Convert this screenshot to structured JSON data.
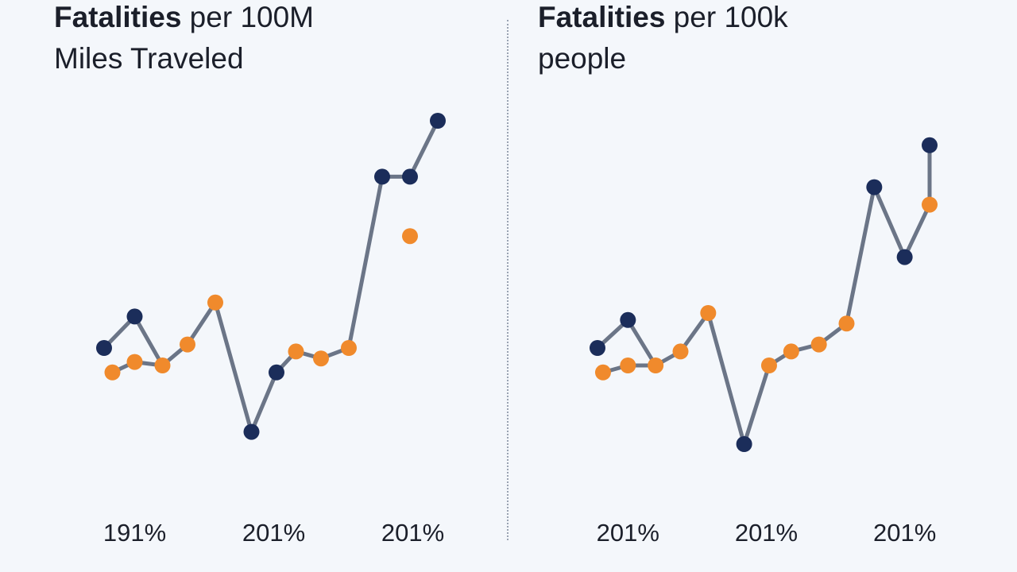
{
  "chart_data": [
    {
      "type": "line",
      "title_bold": "Fatalities",
      "title_rest": " per 100M",
      "title_line2": "Miles Traveled",
      "x_tick_labels": [
        "191%",
        "201%",
        "201%"
      ],
      "x_ticks_at": [
        1.1,
        6.1,
        11.1
      ],
      "xlim": [
        0,
        12
      ],
      "ylim": [
        0,
        100
      ],
      "grid": false,
      "lines": [
        [
          [
            0,
            30
          ],
          [
            1.1,
            39
          ],
          [
            2.1,
            25
          ],
          [
            3,
            31
          ],
          [
            4,
            43
          ],
          [
            5.3,
            6
          ],
          [
            6.2,
            23
          ],
          [
            6.9,
            29
          ],
          [
            7.8,
            27
          ],
          [
            8.8,
            30
          ],
          [
            10,
            79
          ],
          [
            11,
            79
          ],
          [
            12,
            95
          ]
        ],
        [
          [
            0.3,
            23
          ],
          [
            1.1,
            26
          ],
          [
            2.1,
            25
          ]
        ]
      ],
      "markers": {
        "navy": [
          [
            0,
            30
          ],
          [
            1.1,
            39
          ],
          [
            5.3,
            6
          ],
          [
            6.2,
            23
          ],
          [
            10,
            79
          ],
          [
            11,
            79
          ],
          [
            12,
            95
          ]
        ],
        "orange": [
          [
            0.3,
            23
          ],
          [
            1.1,
            26
          ],
          [
            2.1,
            25
          ],
          [
            3,
            31
          ],
          [
            4,
            43
          ],
          [
            6.9,
            29
          ],
          [
            7.8,
            27
          ],
          [
            8.8,
            30
          ],
          [
            11,
            62
          ]
        ]
      }
    },
    {
      "type": "line",
      "title_bold": "Fatalities",
      "title_rest": " per 100k",
      "title_line2": "people",
      "x_tick_labels": [
        "201%",
        "201%",
        "201%"
      ],
      "x_ticks_at": [
        1.1,
        6.1,
        11.1
      ],
      "xlim": [
        0,
        12
      ],
      "ylim": [
        0,
        100
      ],
      "grid": false,
      "lines": [
        [
          [
            0,
            30
          ],
          [
            1.1,
            38
          ],
          [
            2.1,
            25
          ],
          [
            3,
            29
          ],
          [
            4,
            40
          ],
          [
            5.3,
            2.5
          ],
          [
            6.2,
            25
          ],
          [
            7,
            29
          ],
          [
            8,
            31
          ],
          [
            9,
            37
          ],
          [
            10,
            76
          ],
          [
            11.1,
            56
          ],
          [
            12,
            71
          ],
          [
            12,
            88
          ]
        ],
        [
          [
            0.2,
            23
          ],
          [
            1.1,
            25
          ],
          [
            2.1,
            25
          ]
        ]
      ],
      "markers": {
        "navy": [
          [
            0,
            30
          ],
          [
            1.1,
            38
          ],
          [
            5.3,
            2.5
          ],
          [
            10,
            76
          ],
          [
            11.1,
            56
          ],
          [
            12,
            88
          ]
        ],
        "orange": [
          [
            0.2,
            23
          ],
          [
            1.1,
            25
          ],
          [
            2.1,
            25
          ],
          [
            3,
            29
          ],
          [
            4,
            40
          ],
          [
            6.2,
            25
          ],
          [
            7,
            29
          ],
          [
            8,
            31
          ],
          [
            9,
            37
          ],
          [
            12,
            71
          ]
        ]
      }
    }
  ],
  "colors": {
    "navy": "#1b2d5a",
    "orange": "#f08a2c",
    "line": "#6b7587",
    "background": "#f4f7fb"
  }
}
